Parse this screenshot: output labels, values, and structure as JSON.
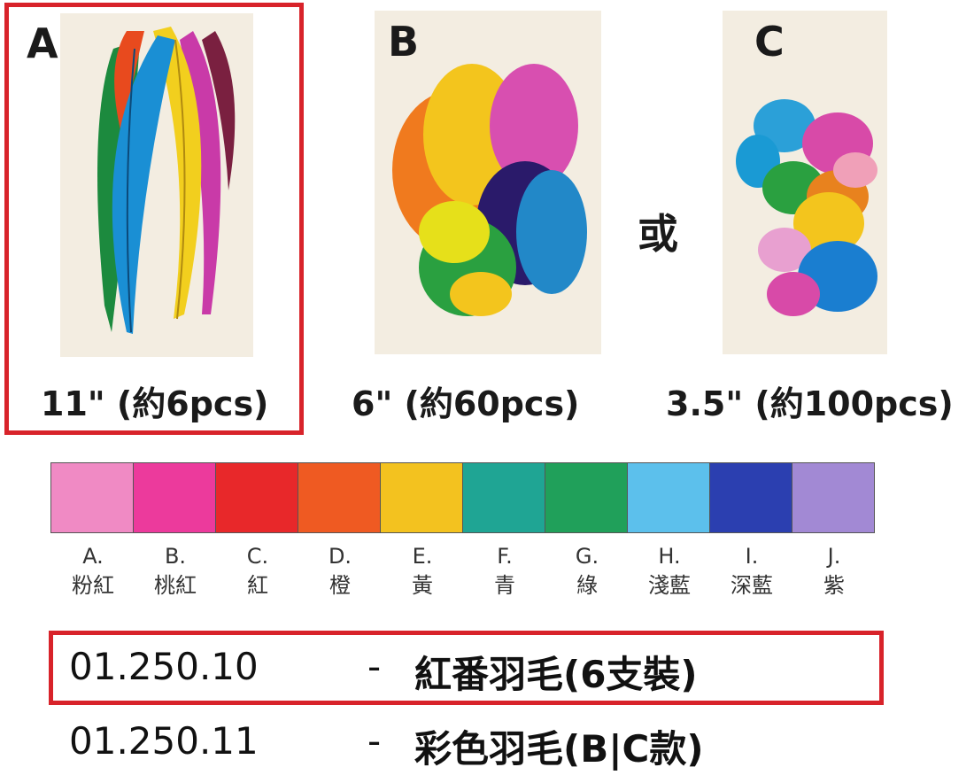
{
  "panels": [
    {
      "letter": "A",
      "caption": "11\" (約6pcs)"
    },
    {
      "letter": "B",
      "caption": "6\" (約60pcs)"
    },
    {
      "letter": "C",
      "caption": "3.5\" (約100pcs)"
    }
  ],
  "or_text": "或",
  "colors": [
    {
      "code": "A.",
      "name": "粉紅",
      "hex": "#f08ac4"
    },
    {
      "code": "B.",
      "name": "桃紅",
      "hex": "#ec3a9c"
    },
    {
      "code": "C.",
      "name": "紅",
      "hex": "#e8282a"
    },
    {
      "code": "D.",
      "name": "橙",
      "hex": "#ef5a22"
    },
    {
      "code": "E.",
      "name": "黃",
      "hex": "#f3c21f"
    },
    {
      "code": "F.",
      "name": "青",
      "hex": "#1fa594"
    },
    {
      "code": "G.",
      "name": "綠",
      "hex": "#20a05a"
    },
    {
      "code": "H.",
      "name": "淺藍",
      "hex": "#5cc0ec"
    },
    {
      "code": "I.",
      "name": "深藍",
      "hex": "#2b3fb0"
    },
    {
      "code": "J.",
      "name": "紫",
      "hex": "#a289d4"
    }
  ],
  "products": [
    {
      "code": "01.250.10",
      "dash": "-",
      "name": "紅番羽毛(6支裝)"
    },
    {
      "code": "01.250.11",
      "dash": "-",
      "name": "彩色羽毛(B|C款)"
    }
  ]
}
